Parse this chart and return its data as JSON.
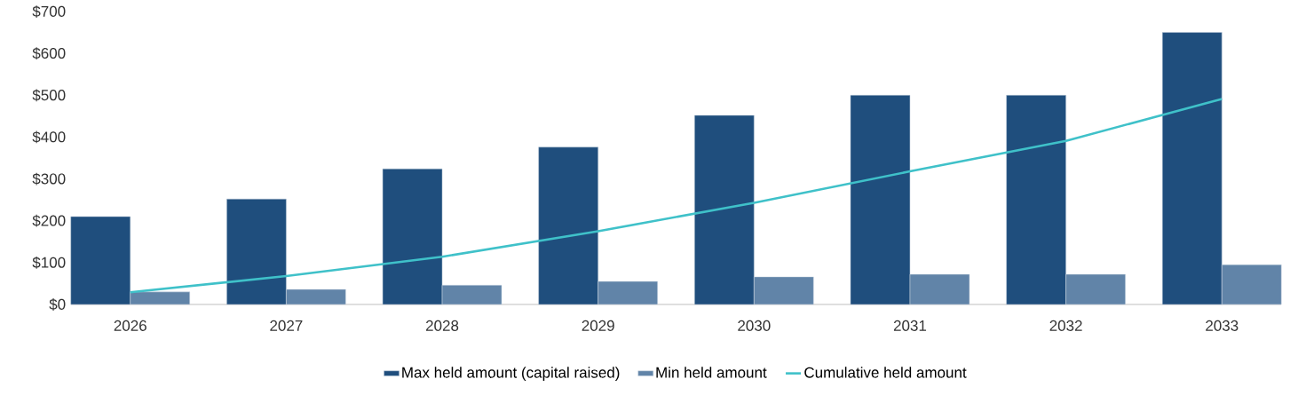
{
  "chart_data": {
    "type": "bar",
    "categories": [
      "2026",
      "2027",
      "2028",
      "2029",
      "2030",
      "2031",
      "2032",
      "2033"
    ],
    "series": [
      {
        "name": "Max held amount (capital raised)",
        "color": "#1f4e7d",
        "values": [
          210,
          252,
          324,
          376,
          452,
          500,
          500,
          650
        ]
      },
      {
        "name": "Min held amount",
        "color": "#6184a8",
        "values": [
          30,
          36,
          46,
          55,
          66,
          72,
          72,
          95
        ]
      },
      {
        "name": "Cumulative held amount",
        "type": "line",
        "color": "#3fc1c9",
        "values": [
          29,
          68,
          114,
          175,
          243,
          318,
          391,
          491
        ]
      }
    ],
    "ylim": [
      0,
      700
    ],
    "yticks": [
      {
        "value": 0,
        "label": "$0"
      },
      {
        "value": 100,
        "label": "$100"
      },
      {
        "value": 200,
        "label": "$200"
      },
      {
        "value": 300,
        "label": "$300"
      },
      {
        "value": 400,
        "label": "$400"
      },
      {
        "value": 500,
        "label": "$500"
      },
      {
        "value": 600,
        "label": "$600"
      },
      {
        "value": 700,
        "label": "$700"
      }
    ],
    "legend": "bottom"
  }
}
